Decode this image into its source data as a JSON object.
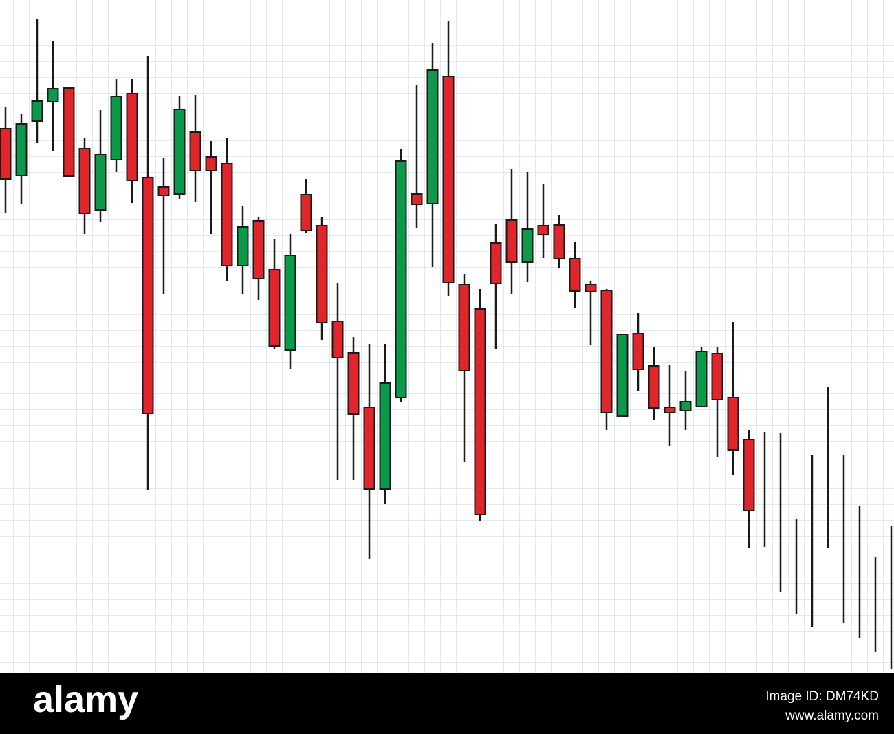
{
  "chart_data": {
    "type": "candlestick",
    "up_color": "#0b9a4a",
    "down_color": "#e0262a",
    "wick_color": "#1a1a1a",
    "ylim": [
      0,
      975
    ],
    "grid": true,
    "open": [
      788,
      720,
      799,
      827,
      847,
      759,
      670,
      743,
      839,
      717,
      703,
      693,
      783,
      747,
      737,
      589,
      654,
      583,
      466,
      692,
      647,
      508,
      462,
      383,
      264,
      397,
      693,
      679,
      864,
      561,
      526,
      622,
      655,
      594,
      647,
      648,
      599,
      561,
      553,
      370,
      490,
      443,
      383,
      378,
      384,
      461,
      397,
      336,
      null,
      null,
      null,
      null,
      null,
      null,
      null,
      null,
      null
    ],
    "high": [
      820,
      810,
      947,
      915,
      847,
      775,
      815,
      860,
      860,
      893,
      745,
      835,
      837,
      770,
      775,
      675,
      660,
      627,
      635,
      715,
      660,
      563,
      485,
      475,
      475,
      758,
      851,
      912,
      945,
      577,
      555,
      650,
      730,
      725,
      708,
      663,
      623,
      567,
      555,
      490,
      520,
      470,
      445,
      435,
      470,
      470,
      507,
      350,
      347,
      345,
      220,
      313,
      413,
      313,
      240,
      165,
      210
    ],
    "low": [
      665,
      678,
      767,
      755,
      719,
      635,
      653,
      725,
      680,
      262,
      547,
      685,
      682,
      635,
      567,
      547,
      539,
      467,
      438,
      637,
      481,
      277,
      277,
      163,
      242,
      390,
      643,
      587,
      545,
      303,
      218,
      467,
      547,
      565,
      600,
      585,
      527,
      473,
      350,
      369,
      407,
      365,
      327,
      350,
      384,
      310,
      285,
      179,
      180,
      115,
      82,
      63,
      178,
      70,
      48,
      27,
      3
    ],
    "close": [
      715,
      795,
      828,
      846,
      719,
      665,
      750,
      835,
      713,
      374,
      691,
      816,
      727,
      727,
      589,
      645,
      570,
      472,
      604,
      640,
      506,
      455,
      373,
      264,
      418,
      741,
      678,
      873,
      564,
      436,
      227,
      563,
      594,
      642,
      634,
      599,
      552,
      551,
      375,
      489,
      438,
      382,
      375,
      391,
      464,
      394,
      321,
      233,
      null,
      null,
      null,
      null,
      null,
      null,
      null,
      null,
      null
    ]
  },
  "watermark": {
    "logo": "alamy",
    "image_id": "Image ID: DM74KD",
    "url": "www.alamy.com"
  }
}
